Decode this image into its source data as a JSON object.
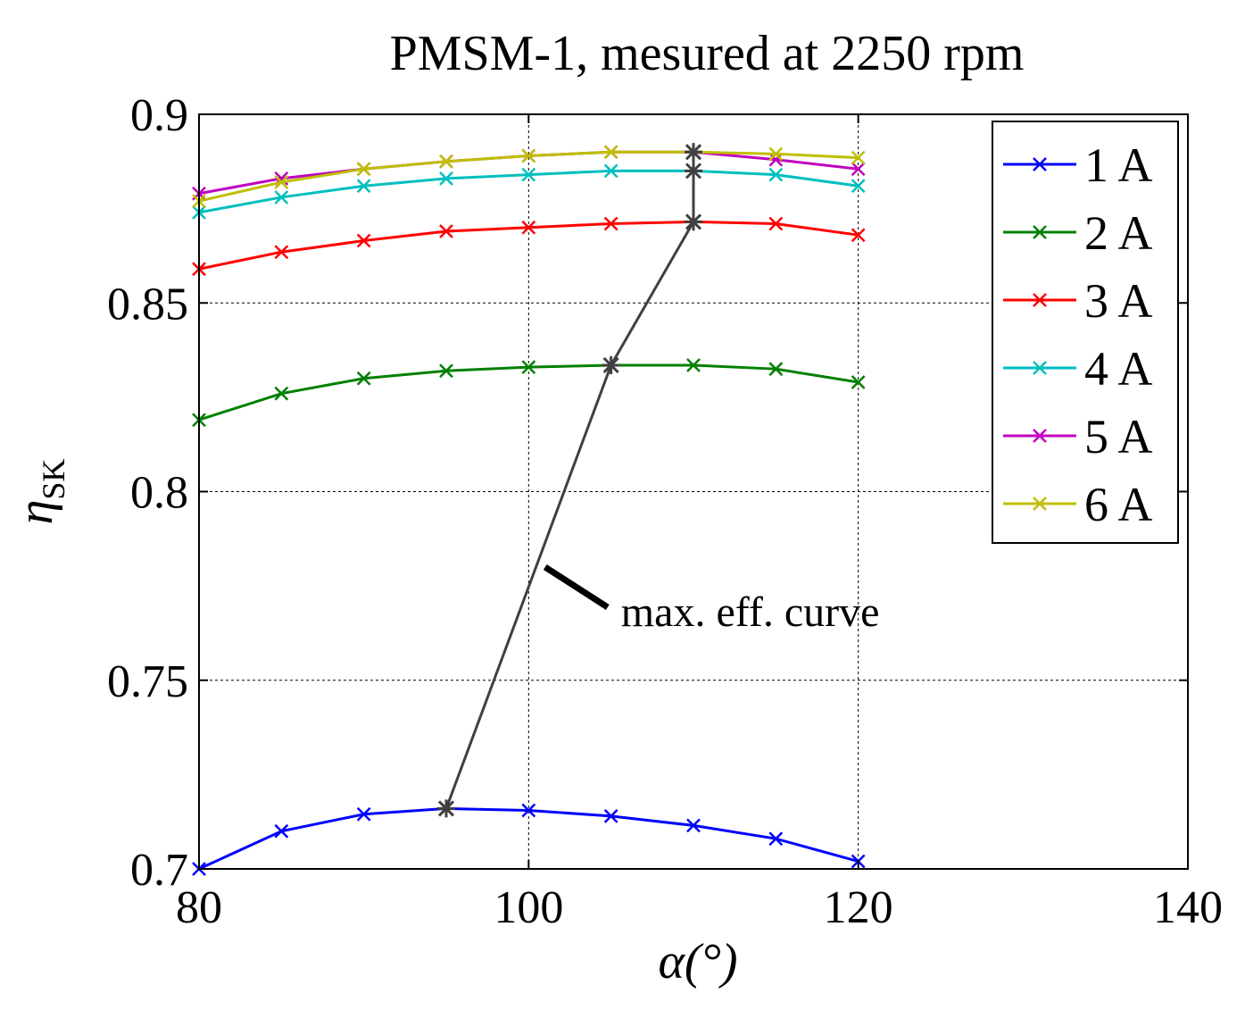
{
  "chart_data": {
    "type": "line",
    "title": "PMSM-1, mesured at 2250 rpm",
    "xlabel": "α(°)",
    "ylabel": "η",
    "ylabel_sub": "SK",
    "xlim": [
      80,
      140
    ],
    "ylim": [
      0.7,
      0.9
    ],
    "xticks": [
      80,
      100,
      120,
      140
    ],
    "xtick_labels": [
      "80",
      "100",
      "120",
      "140"
    ],
    "yticks": [
      0.7,
      0.75,
      0.8,
      0.85,
      0.9
    ],
    "ytick_labels": [
      "0.7",
      "0.75",
      "0.8",
      "0.85",
      "0.9"
    ],
    "grid": true,
    "legend_position": "top-right",
    "x": [
      80,
      85,
      90,
      95,
      100,
      105,
      110,
      115,
      120
    ],
    "series": [
      {
        "name": "1 A",
        "color": "#0000ff",
        "values": [
          0.7,
          0.71,
          0.7145,
          0.716,
          0.7155,
          0.714,
          0.7115,
          0.708,
          0.702
        ]
      },
      {
        "name": "2 A",
        "color": "#008000",
        "values": [
          0.819,
          0.826,
          0.83,
          0.832,
          0.833,
          0.8335,
          0.8335,
          0.8325,
          0.829
        ]
      },
      {
        "name": "3 A",
        "color": "#ff0000",
        "values": [
          0.859,
          0.8635,
          0.8665,
          0.869,
          0.87,
          0.871,
          0.8715,
          0.871,
          0.868
        ]
      },
      {
        "name": "4 A",
        "color": "#00bfbf",
        "values": [
          0.874,
          0.878,
          0.881,
          0.883,
          0.884,
          0.885,
          0.885,
          0.884,
          0.881
        ]
      },
      {
        "name": "5 A",
        "color": "#bf00bf",
        "values": [
          0.879,
          0.883,
          0.8855,
          0.8875,
          0.889,
          0.89,
          0.89,
          0.888,
          0.8855
        ]
      },
      {
        "name": "6 A",
        "color": "#bfbf00",
        "values": [
          0.877,
          0.882,
          0.8855,
          0.8875,
          0.889,
          0.89,
          0.89,
          0.8895,
          0.8885
        ]
      }
    ],
    "max_eff_curve": {
      "color": "#404040",
      "points": [
        [
          95,
          0.716
        ],
        [
          105,
          0.8335
        ],
        [
          110,
          0.8715
        ],
        [
          110,
          0.885
        ],
        [
          110,
          0.89
        ],
        [
          110,
          0.89
        ]
      ]
    },
    "annotation": {
      "text": "max. eff. curve",
      "arrow_to": [
        101,
        0.78
      ]
    }
  }
}
